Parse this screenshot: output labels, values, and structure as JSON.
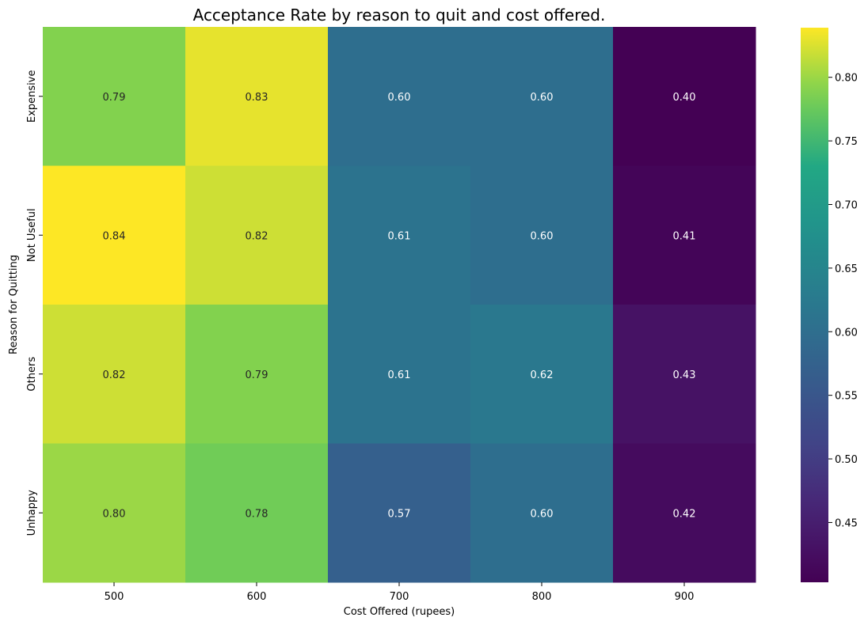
{
  "chart_data": {
    "type": "heatmap",
    "title": "Acceptance Rate by reason to quit and cost offered.",
    "xlabel": "Cost Offered (rupees)",
    "ylabel": "Reason for Quitting",
    "x_categories": [
      "500",
      "600",
      "700",
      "800",
      "900"
    ],
    "y_categories": [
      "Expensive",
      "Not Useful",
      "Others",
      "Unhappy"
    ],
    "values": [
      [
        0.79,
        0.83,
        0.6,
        0.6,
        0.4
      ],
      [
        0.84,
        0.82,
        0.61,
        0.6,
        0.41
      ],
      [
        0.82,
        0.79,
        0.61,
        0.62,
        0.43
      ],
      [
        0.8,
        0.78,
        0.57,
        0.6,
        0.42
      ]
    ],
    "colormap": "viridis",
    "color_range": [
      0.403,
      0.839
    ],
    "colorbar_ticks": [
      "0.45",
      "0.50",
      "0.55",
      "0.60",
      "0.65",
      "0.70",
      "0.75",
      "0.80"
    ],
    "annotations_format": "2 decimals"
  }
}
